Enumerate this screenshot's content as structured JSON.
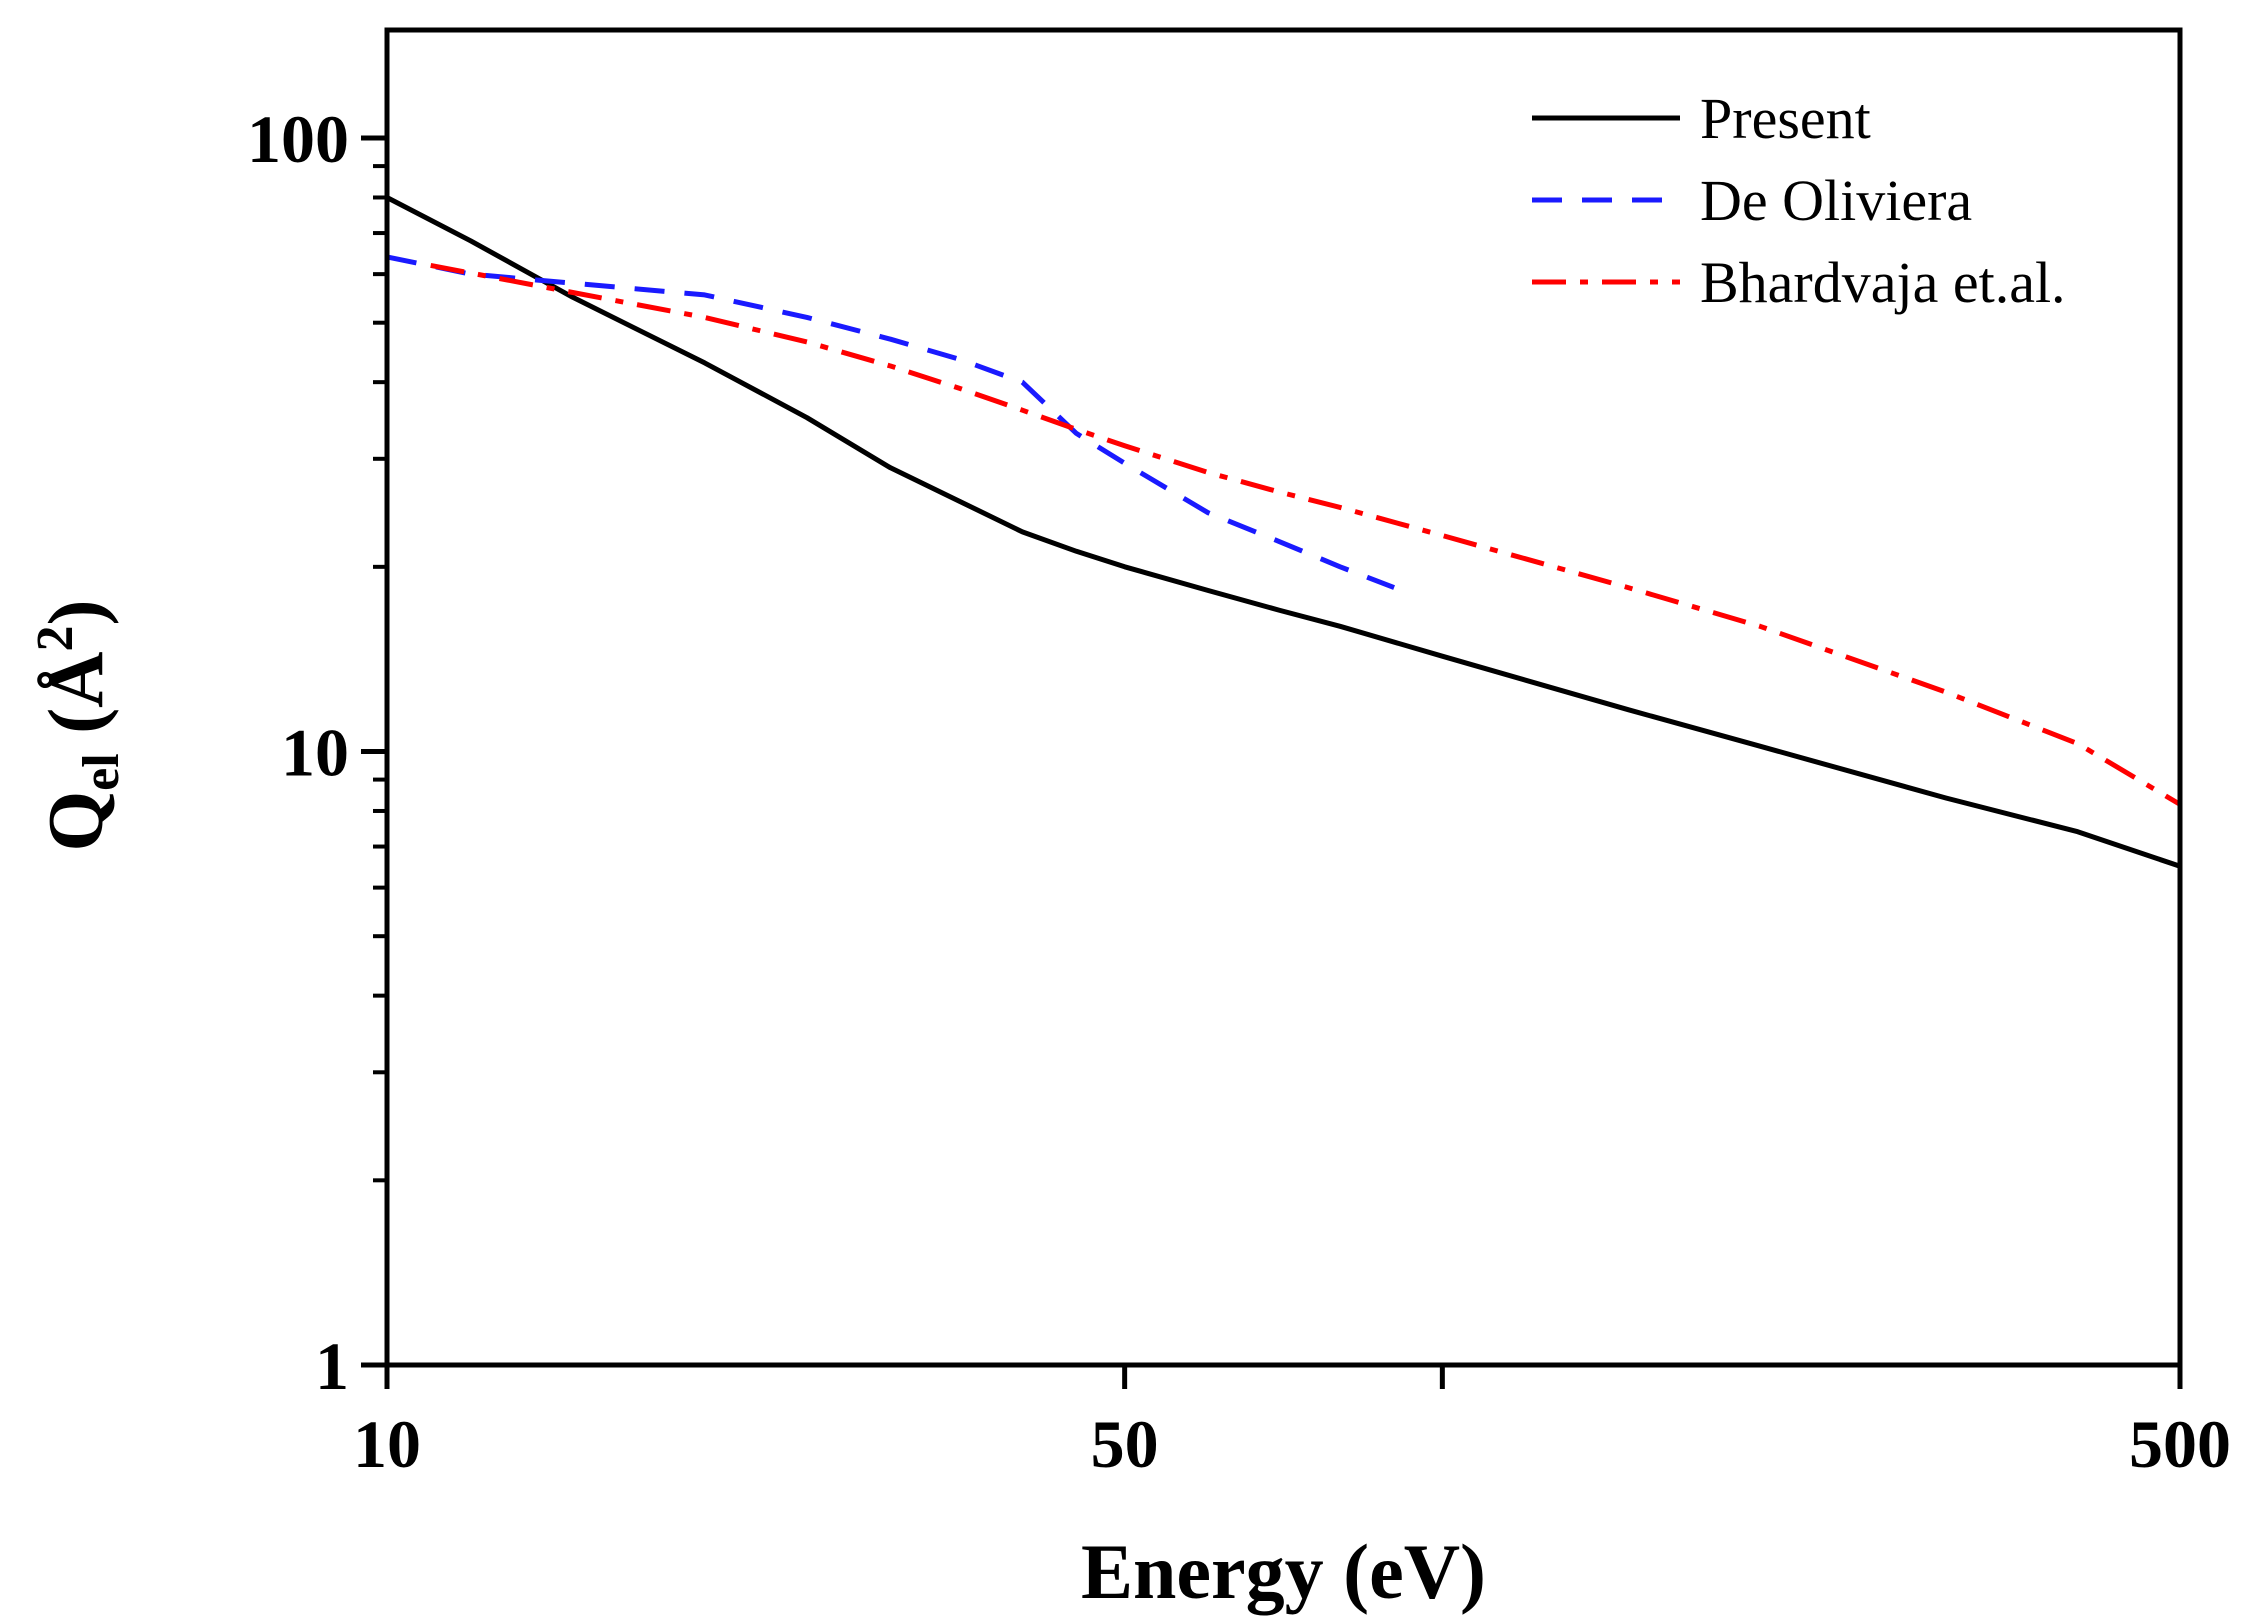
{
  "chart_data": {
    "type": "line",
    "title": "",
    "xlabel": "Energy (eV)",
    "ylabel": {
      "q": "Q",
      "sub": "el",
      "open": " (",
      "unit": "Å",
      "sup": "2",
      "close": ")"
    },
    "xscale": "log",
    "yscale": "log",
    "xlim": [
      10,
      500
    ],
    "ylim": [
      1,
      150
    ],
    "x_ticks": [
      10,
      50,
      100,
      500
    ],
    "x_tick_labels": [
      "10",
      "50",
      "",
      "500"
    ],
    "y_ticks": [
      1,
      10,
      100
    ],
    "y_tick_labels": [
      "1",
      "10",
      "100"
    ],
    "legend_position": "top-right",
    "series": [
      {
        "name": "Present",
        "color": "#000000",
        "style": "solid",
        "x": [
          10,
          12,
          15,
          20,
          25,
          30,
          35,
          40,
          45,
          50,
          60,
          70,
          80,
          100,
          150,
          200,
          300,
          400,
          500
        ],
        "y": [
          80,
          68,
          55,
          43,
          35,
          29,
          25.5,
          22.8,
          21.2,
          20,
          18.3,
          17,
          16,
          14.3,
          11.7,
          10.2,
          8.4,
          7.4,
          6.5
        ]
      },
      {
        "name": "De Oliviera",
        "color": "#1a1aff",
        "style": "dashed",
        "x": [
          10,
          12,
          15,
          20,
          25,
          30,
          35,
          40,
          45,
          50,
          60,
          70,
          80,
          90
        ],
        "y": [
          64,
          60,
          58,
          55.5,
          51,
          47,
          43.5,
          40,
          33,
          29.5,
          24.5,
          22,
          20,
          18.5
        ]
      },
      {
        "name": "Bhardvaja et.al.",
        "color": "#ff0000",
        "style": "dashdot",
        "x": [
          11,
          15,
          20,
          25,
          30,
          35,
          40,
          45,
          50,
          60,
          70,
          80,
          100,
          150,
          200,
          300,
          400,
          500
        ],
        "y": [
          62,
          56,
          51,
          46.5,
          42.5,
          39,
          36,
          33.5,
          31.5,
          28.5,
          26.5,
          25,
          22.5,
          18.5,
          16,
          12.5,
          10.3,
          8.2
        ]
      }
    ]
  }
}
